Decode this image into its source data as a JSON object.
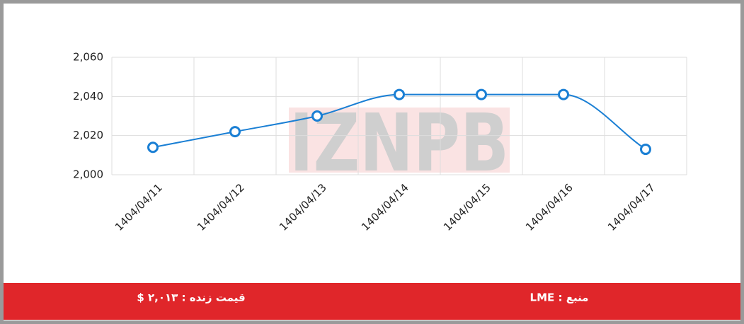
{
  "chart_data": {
    "type": "line",
    "categories": [
      "1404/04/11",
      "1404/04/12",
      "1404/04/13",
      "1404/04/14",
      "1404/04/15",
      "1404/04/16",
      "1404/04/17"
    ],
    "values": [
      2014,
      2022,
      2030,
      2041,
      2041,
      2041,
      2013
    ],
    "color": "#1a7fd4",
    "ylim": [
      2000,
      2060
    ],
    "yticks": [
      {
        "value": 2000,
        "label": "2,000"
      },
      {
        "value": 2020,
        "label": "2,020"
      },
      {
        "value": 2040,
        "label": "2,040"
      },
      {
        "value": 2060,
        "label": "2,060"
      }
    ],
    "grid": true
  },
  "watermark": "IZNPB",
  "footer": {
    "live_price": "قیمت زنده : ۲,۰۱۳ $",
    "source": "منبع : LME"
  }
}
